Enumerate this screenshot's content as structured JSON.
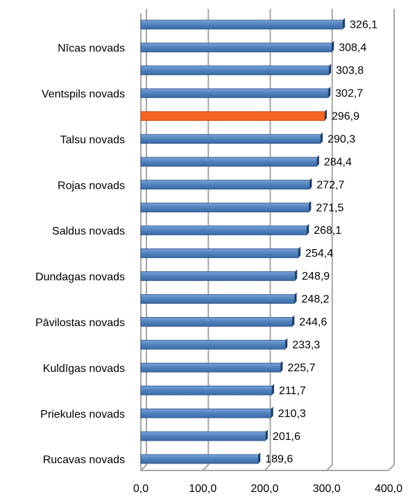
{
  "chart_data": {
    "type": "hbar",
    "categories": [
      null,
      "Nīcas novads",
      null,
      "Ventspils novads",
      null,
      "Talsu novads",
      null,
      "Rojas novads",
      null,
      "Saldus novads",
      null,
      "Dundagas novads",
      null,
      "Pāvilostas novads",
      null,
      "Kuldīgas novads",
      null,
      "Priekules novads",
      null,
      "Rucavas novads"
    ],
    "values": [
      326.1,
      308.4,
      303.8,
      302.7,
      296.9,
      290.3,
      284.4,
      272.7,
      271.5,
      268.1,
      254.4,
      248.9,
      248.2,
      244.6,
      233.3,
      225.7,
      211.7,
      210.3,
      201.6,
      189.6
    ],
    "value_labels": [
      "326,1",
      "308,4",
      "303,8",
      "302,7",
      "296,9",
      "290,3",
      "284,4",
      "272,7",
      "271,5",
      "268,1",
      "254,4",
      "248,9",
      "248,2",
      "244,6",
      "233,3",
      "225,7",
      "211,7",
      "210,3",
      "201,6",
      "189,6"
    ],
    "colors": [
      "#4f81bd",
      "#4f81bd",
      "#4f81bd",
      "#4f81bd",
      "#f26522",
      "#4f81bd",
      "#4f81bd",
      "#4f81bd",
      "#4f81bd",
      "#4f81bd",
      "#4f81bd",
      "#4f81bd",
      "#4f81bd",
      "#4f81bd",
      "#4f81bd",
      "#4f81bd",
      "#4f81bd",
      "#4f81bd",
      "#4f81bd",
      "#4f81bd"
    ],
    "xlim": [
      0,
      400
    ],
    "xticks": [
      {
        "value": 0,
        "label": "0,0"
      },
      {
        "value": 100,
        "label": "100,0"
      },
      {
        "value": 200,
        "label": "200,0"
      },
      {
        "value": 300,
        "label": "300,0"
      },
      {
        "value": 400,
        "label": "400,0"
      }
    ],
    "grid": true
  }
}
